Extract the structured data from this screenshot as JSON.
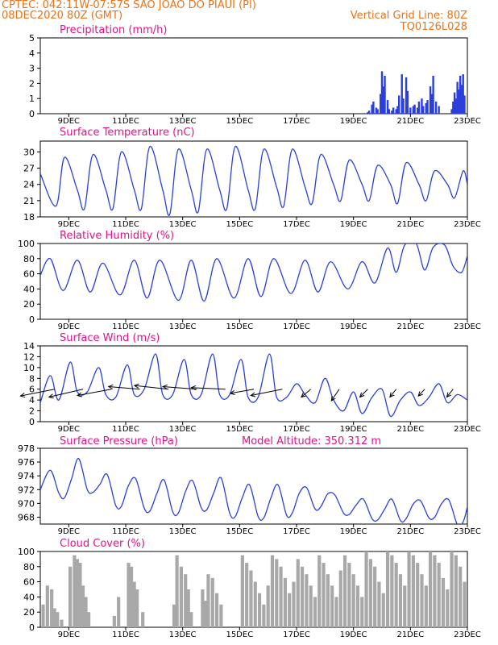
{
  "header": {
    "line1": "CPTEC:   042:11W-07:57S   SAO JOAO DO PIAUI (PI)",
    "line2": "08DEC2020 80Z (GMT)",
    "grid_note": "Vertical Grid Line: 80Z",
    "code": "TQ0126L028"
  },
  "colors": {
    "header": "#e8731a",
    "title": "#e0138c",
    "series": "#2b3fdc",
    "cloud": "#a8a8a8",
    "arrow": "#000000"
  },
  "x_axis": {
    "start_day": 8,
    "end_day": 23,
    "ticks": [
      {
        "day": 9,
        "label": "9DEC"
      },
      {
        "day": 11,
        "label": "11DEC"
      },
      {
        "day": 13,
        "label": "13DEC"
      },
      {
        "day": 15,
        "label": "15DEC"
      },
      {
        "day": 17,
        "label": "17DEC"
      },
      {
        "day": 19,
        "label": "19DEC"
      },
      {
        "day": 21,
        "label": "21DEC"
      },
      {
        "day": 23,
        "label": "23DEC"
      }
    ]
  },
  "chart_data": [
    {
      "id": "precip",
      "type": "bar",
      "title": "Precipitation (mm/h)",
      "ylim": [
        0,
        5
      ],
      "yticks": [
        0,
        1,
        2,
        3,
        4,
        5
      ],
      "x": [
        19.5,
        19.55,
        19.65,
        19.7,
        19.8,
        19.85,
        19.95,
        20.0,
        20.05,
        20.1,
        20.2,
        20.25,
        20.35,
        20.4,
        20.5,
        20.55,
        20.6,
        20.7,
        20.75,
        20.85,
        20.9,
        21.0,
        21.1,
        21.15,
        21.25,
        21.3,
        21.4,
        21.45,
        21.55,
        21.6,
        21.7,
        21.75,
        21.8,
        21.9,
        22.0,
        22.45,
        22.5,
        22.55,
        22.6,
        22.65,
        22.7,
        22.75,
        22.8,
        22.85,
        22.9
      ],
      "values": [
        0.1,
        0.2,
        0.6,
        0.8,
        0.4,
        0.3,
        1.3,
        2.8,
        1.8,
        2.5,
        0.9,
        0.3,
        0.2,
        0.4,
        0.3,
        0.5,
        1.2,
        2.6,
        1.0,
        2.4,
        1.5,
        0.4,
        0.5,
        0.6,
        0.4,
        0.8,
        1.0,
        0.5,
        0.7,
        0.9,
        1.8,
        1.3,
        2.5,
        0.8,
        0.5,
        0.3,
        0.8,
        1.4,
        1.0,
        2.1,
        1.6,
        2.5,
        1.9,
        2.6,
        1.2
      ]
    },
    {
      "id": "temp",
      "type": "line",
      "title": "Surface Temperature (nC)",
      "ylim": [
        18,
        32
      ],
      "yticks": [
        18,
        21,
        24,
        27,
        30
      ],
      "x": [
        8.0,
        8.55,
        8.85,
        9.3,
        9.55,
        9.85,
        10.3,
        10.55,
        10.85,
        11.3,
        11.55,
        11.85,
        12.3,
        12.55,
        12.85,
        13.3,
        13.55,
        13.85,
        14.3,
        14.55,
        14.85,
        15.3,
        15.55,
        15.85,
        16.3,
        16.55,
        16.85,
        17.3,
        17.55,
        17.85,
        18.3,
        18.55,
        18.85,
        19.3,
        19.55,
        19.85,
        20.3,
        20.55,
        20.85,
        21.3,
        21.55,
        21.85,
        22.3,
        22.55,
        22.85,
        23.0
      ],
      "values": [
        26,
        20,
        29,
        23,
        19.5,
        29.5,
        23,
        19.5,
        30,
        23,
        19.5,
        31,
        23,
        18.5,
        30.5,
        23,
        19,
        30.5,
        23,
        19.5,
        31,
        23,
        19.5,
        30.5,
        23.5,
        20,
        30.5,
        23.5,
        20.5,
        29.5,
        24,
        21,
        28.5,
        24,
        21,
        27.5,
        24,
        20.5,
        28,
        24,
        21,
        26.5,
        24,
        21.5,
        26.5,
        24
      ]
    },
    {
      "id": "rh",
      "type": "line",
      "title": "Relative Humidity (%)",
      "ylim": [
        0,
        100
      ],
      "yticks": [
        0,
        20,
        40,
        60,
        80,
        100
      ],
      "x": [
        8.0,
        8.35,
        8.8,
        9.3,
        9.75,
        10.2,
        10.8,
        11.3,
        11.75,
        12.2,
        12.85,
        13.3,
        13.75,
        14.2,
        14.8,
        15.3,
        15.75,
        16.2,
        16.8,
        17.3,
        17.75,
        18.2,
        18.8,
        19.3,
        19.75,
        20.2,
        20.5,
        20.8,
        21.2,
        21.5,
        21.8,
        22.2,
        22.5,
        22.8,
        23.0
      ],
      "values": [
        58,
        80,
        38,
        78,
        36,
        74,
        32,
        78,
        28,
        78,
        25,
        78,
        24,
        80,
        28,
        80,
        30,
        80,
        34,
        78,
        36,
        76,
        40,
        76,
        48,
        94,
        62,
        98,
        100,
        65,
        95,
        98,
        70,
        62,
        84
      ]
    },
    {
      "id": "wind",
      "type": "line",
      "title": "Surface Wind (m/s)",
      "ylim": [
        0,
        14
      ],
      "yticks": [
        0,
        2,
        4,
        6,
        8,
        10,
        12,
        14
      ],
      "x": [
        8.0,
        8.35,
        8.65,
        9.05,
        9.3,
        9.65,
        10.05,
        10.3,
        10.65,
        11.05,
        11.3,
        11.65,
        12.05,
        12.3,
        12.65,
        13.05,
        13.3,
        13.65,
        14.05,
        14.3,
        14.65,
        15.05,
        15.3,
        15.65,
        16.05,
        16.3,
        16.65,
        17.0,
        17.3,
        17.65,
        18.0,
        18.3,
        18.65,
        19.0,
        19.3,
        19.65,
        20.0,
        20.3,
        20.65,
        21.0,
        21.3,
        21.65,
        22.0,
        22.3,
        22.65,
        23.0
      ],
      "values": [
        3.5,
        8.5,
        4,
        11,
        5.5,
        5.5,
        10,
        5,
        4.5,
        10.5,
        5,
        6,
        12.5,
        5,
        5,
        11.5,
        5,
        5,
        12.5,
        5,
        5,
        11.5,
        4.5,
        4.5,
        12.5,
        4.5,
        4.5,
        7,
        5,
        3.5,
        8,
        4,
        2,
        5.5,
        1.5,
        4.5,
        6,
        1,
        4,
        5.5,
        3,
        4.5,
        7,
        3.5,
        5,
        4
      ]
    },
    {
      "id": "wind_barbs",
      "type": "vector",
      "x": [
        8.5,
        9.5,
        10.5,
        11.5,
        12.5,
        13.5,
        14.5,
        15.5,
        16.5,
        17.5,
        18.5,
        19.5,
        20.5,
        21.5,
        22.5
      ],
      "u": [
        -6.5,
        -6.5,
        -6.5,
        -6,
        -6.5,
        -6.5,
        -6.5,
        -4.5,
        -6.0,
        -1.8,
        -1.5,
        -1.5,
        -1.2,
        -1.2,
        -1.2
      ],
      "v": [
        -1.3,
        -1.5,
        -1.2,
        0.5,
        0.7,
        0.5,
        0.3,
        -0.8,
        -1.2,
        -1.5,
        -2.2,
        -1.5,
        -1.5,
        -1.3,
        -1.5
      ]
    },
    {
      "id": "press",
      "type": "line",
      "title": "Surface Pressure (hPa)",
      "annotation": "Model Altitude: 350.312 m",
      "ylim": [
        967,
        978
      ],
      "yticks": [
        968,
        970,
        972,
        974,
        976,
        978
      ],
      "x": [
        8.0,
        8.35,
        8.65,
        8.85,
        9.1,
        9.35,
        9.65,
        9.85,
        10.1,
        10.35,
        10.65,
        10.85,
        11.1,
        11.35,
        11.65,
        11.85,
        12.1,
        12.35,
        12.65,
        12.85,
        13.1,
        13.35,
        13.65,
        13.85,
        14.1,
        14.35,
        14.65,
        14.85,
        15.1,
        15.35,
        15.65,
        15.85,
        16.1,
        16.35,
        16.65,
        16.85,
        17.1,
        17.35,
        17.65,
        17.85,
        18.1,
        18.35,
        18.65,
        18.85,
        19.1,
        19.35,
        19.65,
        19.85,
        20.1,
        20.35,
        20.65,
        20.85,
        21.1,
        21.35,
        21.65,
        21.85,
        22.1,
        22.35,
        22.65,
        22.85,
        23.0
      ],
      "values": [
        972,
        974.8,
        971.5,
        970.8,
        973.6,
        976.5,
        972,
        971.6,
        972.8,
        974.2,
        969.7,
        969.6,
        972.6,
        973.6,
        969.3,
        968.9,
        971.5,
        973.4,
        968.8,
        968.6,
        971.7,
        973.3,
        969.4,
        969.1,
        971.6,
        973.7,
        968.6,
        968.1,
        970.9,
        972.7,
        968.1,
        967.9,
        970.8,
        972.7,
        968.3,
        968.6,
        971.5,
        972.3,
        969.2,
        969.5,
        971.4,
        971.2,
        968.6,
        968.4,
        969.8,
        970.6,
        967.8,
        967.6,
        969.2,
        970.6,
        967.5,
        967.8,
        969.9,
        970.4,
        967.9,
        968.0,
        970.0,
        970.5,
        966.9,
        967.3,
        969.5
      ]
    },
    {
      "id": "cloud",
      "type": "bar",
      "title": "Cloud Cover (%)",
      "ylim": [
        0,
        100
      ],
      "yticks": [
        0,
        20,
        40,
        60,
        80,
        100
      ],
      "x": [
        8.1,
        8.25,
        8.4,
        8.5,
        8.6,
        8.75,
        9.05,
        9.2,
        9.3,
        9.4,
        9.5,
        9.6,
        9.7,
        10.6,
        10.75,
        11.1,
        11.2,
        11.3,
        11.4,
        11.6,
        12.7,
        12.8,
        12.95,
        13.1,
        13.2,
        13.3,
        13.7,
        13.8,
        13.9,
        14.05,
        14.2,
        14.35,
        15.1,
        15.25,
        15.4,
        15.55,
        15.7,
        15.85,
        16.0,
        16.15,
        16.3,
        16.45,
        16.6,
        16.75,
        16.9,
        17.05,
        17.2,
        17.35,
        17.5,
        17.65,
        17.8,
        17.95,
        18.1,
        18.25,
        18.4,
        18.55,
        18.7,
        18.85,
        19.0,
        19.15,
        19.3,
        19.45,
        19.6,
        19.75,
        19.9,
        20.05,
        20.2,
        20.35,
        20.5,
        20.65,
        20.8,
        20.95,
        21.1,
        21.25,
        21.4,
        21.55,
        21.7,
        21.85,
        22.0,
        22.15,
        22.3,
        22.45,
        22.6,
        22.75,
        22.9
      ],
      "values": [
        30,
        55,
        50,
        25,
        20,
        10,
        80,
        95,
        90,
        85,
        55,
        40,
        20,
        15,
        40,
        85,
        80,
        60,
        50,
        20,
        30,
        95,
        80,
        70,
        50,
        20,
        50,
        35,
        70,
        65,
        45,
        30,
        95,
        85,
        75,
        60,
        45,
        30,
        55,
        95,
        90,
        80,
        65,
        45,
        60,
        90,
        80,
        70,
        55,
        40,
        95,
        85,
        70,
        55,
        40,
        75,
        95,
        85,
        70,
        55,
        40,
        100,
        90,
        80,
        60,
        45,
        100,
        95,
        85,
        70,
        55,
        100,
        95,
        85,
        70,
        55,
        100,
        95,
        85,
        65,
        50,
        100,
        95,
        80,
        60
      ]
    }
  ]
}
